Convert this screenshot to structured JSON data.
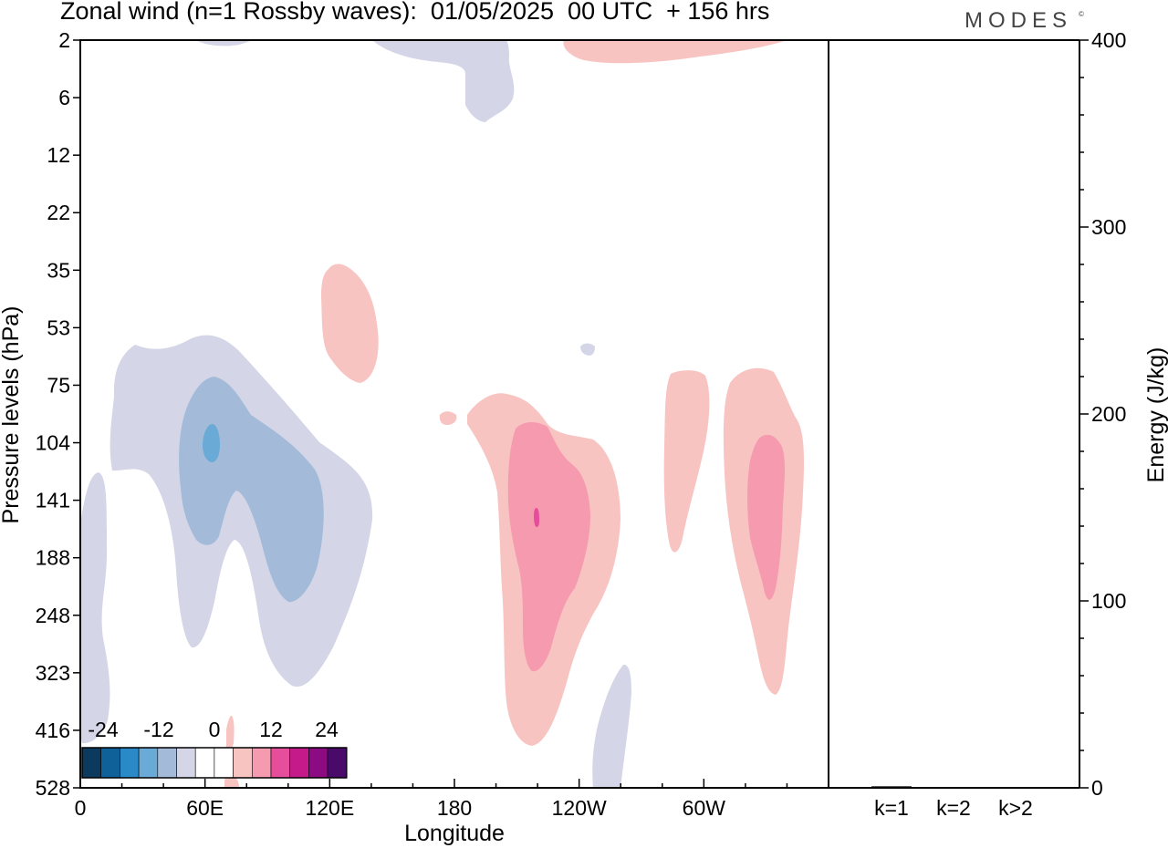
{
  "header": {
    "title": "Zonal wind (n=1 Rossby waves):  01/05/2025  00 UTC  + 156 hrs",
    "brand": "MODES",
    "brand_mark": "©"
  },
  "chart_data": [
    {
      "type": "heatmap",
      "title": "Zonal wind (n=1 Rossby waves):  01/05/2025  00 UTC  + 156 hrs",
      "xlabel": "Longitude",
      "ylabel": "Pressure levels (hPa)",
      "x_ticks": [
        "0",
        "60E",
        "120E",
        "180",
        "120W",
        "60W"
      ],
      "x_tick_degrees": [
        0,
        60,
        120,
        180,
        240,
        300
      ],
      "xlim": [
        0,
        360
      ],
      "y_ticks": [
        "2",
        "6",
        "12",
        "22",
        "35",
        "53",
        "75",
        "104",
        "141",
        "188",
        "248",
        "323",
        "416",
        "528"
      ],
      "grid": false,
      "colorbar": {
        "labels": [
          "-24",
          "-12",
          "0",
          "12",
          "24"
        ],
        "colors": [
          "#0b3a5e",
          "#0e6299",
          "#2a8ac7",
          "#6aaad6",
          "#a3bbd9",
          "#d4d6e8",
          "#ffffff",
          "#ffffff",
          "#f8c4c1",
          "#f69ab0",
          "#e64d9a",
          "#c51a8a",
          "#8c0b82",
          "#4a0a6a"
        ]
      },
      "regions": [
        {
          "sign": "negative",
          "level": 1,
          "color": "#d4d6e8",
          "lon": [
            40,
            72
          ],
          "p_hPa": [
            2,
            2
          ]
        },
        {
          "sign": "negative",
          "level": 1,
          "color": "#d4d6e8",
          "lon": [
            140,
            210
          ],
          "p_hPa": [
            2,
            10
          ]
        },
        {
          "sign": "negative",
          "level": 1,
          "color": "#d4d6e8",
          "lon": [
            15,
            140
          ],
          "p_hPa": [
            55,
            330
          ]
        },
        {
          "sign": "negative",
          "level": 1,
          "color": "#d4d6e8",
          "lon": [
            0,
            14
          ],
          "p_hPa": [
            120,
            416
          ]
        },
        {
          "sign": "negative",
          "level": 1,
          "color": "#d4d6e8",
          "lon": [
            247,
            264
          ],
          "p_hPa": [
            320,
            528
          ]
        },
        {
          "sign": "negative",
          "level": 2,
          "color": "#a3bbd9",
          "lon": [
            48,
            118
          ],
          "p_hPa": [
            78,
            250
          ]
        },
        {
          "sign": "negative",
          "level": 3,
          "color": "#6aaad6",
          "lon": [
            59,
            67
          ],
          "p_hPa": [
            95,
            120
          ]
        },
        {
          "sign": "positive",
          "level": 1,
          "color": "#f8c4c1",
          "lon": [
            232,
            338
          ],
          "p_hPa": [
            2,
            4
          ]
        },
        {
          "sign": "positive",
          "level": 1,
          "color": "#f8c4c1",
          "lon": [
            116,
            144
          ],
          "p_hPa": [
            35,
            75
          ]
        },
        {
          "sign": "positive",
          "level": 1,
          "color": "#f8c4c1",
          "lon": [
            174,
            262
          ],
          "p_hPa": [
            88,
            416
          ]
        },
        {
          "sign": "positive",
          "level": 1,
          "color": "#f8c4c1",
          "lon": [
            283,
            304
          ],
          "p_hPa": [
            75,
            200
          ]
        },
        {
          "sign": "positive",
          "level": 1,
          "color": "#f8c4c1",
          "lon": [
            310,
            348
          ],
          "p_hPa": [
            75,
            330
          ]
        },
        {
          "sign": "positive",
          "level": 1,
          "color": "#f8c4c1",
          "lon": [
            70,
            77
          ],
          "p_hPa": [
            400,
            528
          ]
        },
        {
          "sign": "positive",
          "level": 2,
          "color": "#f69ab0",
          "lon": [
            206,
            245
          ],
          "p_hPa": [
            108,
            330
          ]
        },
        {
          "sign": "positive",
          "level": 2,
          "color": "#f69ab0",
          "lon": [
            320,
            337
          ],
          "p_hPa": [
            105,
            240
          ]
        },
        {
          "sign": "positive",
          "level": 3,
          "color": "#e64d9a",
          "lon": [
            219,
            221
          ],
          "p_hPa": [
            135,
            145
          ]
        }
      ]
    },
    {
      "type": "bar",
      "categories": [
        "k=1",
        "k=2",
        "k>2"
      ],
      "values": [
        0.8,
        0.2,
        0.3
      ],
      "ylabel": "Energy (J/kg)",
      "ylim": [
        0,
        400
      ],
      "y_ticks": [
        "0",
        "100",
        "200",
        "300",
        "400"
      ]
    }
  ]
}
